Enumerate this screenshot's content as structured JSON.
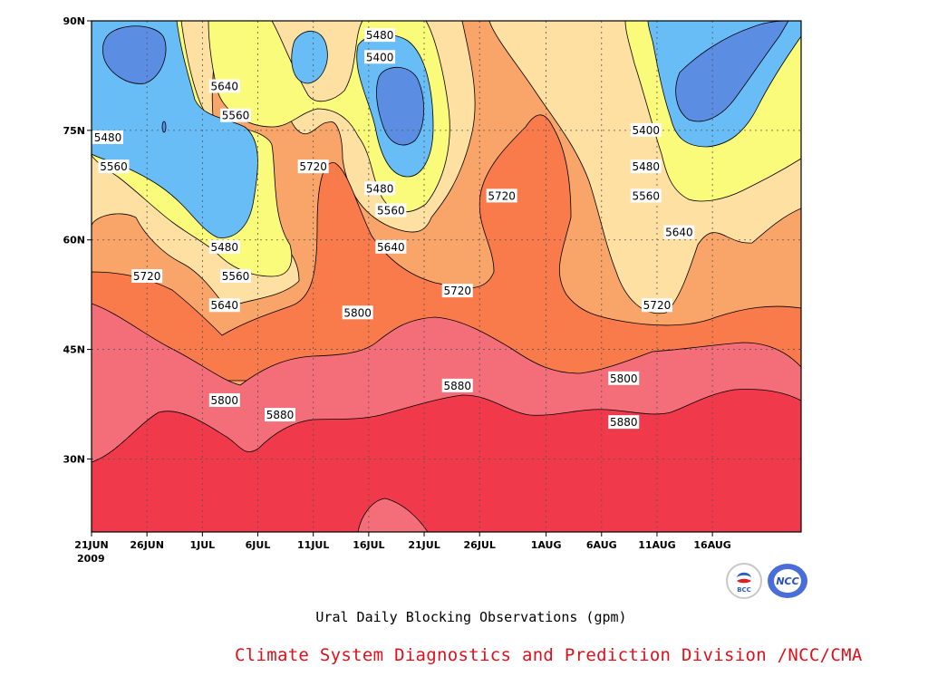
{
  "chart_data": {
    "type": "heatmap",
    "subtype": "filled contour (time-latitude Hovmoller)",
    "title": "Ural Daily Blocking Observations (gpm)",
    "xlabel": "",
    "ylabel": "",
    "x_ticks": [
      "21JUN",
      "26JUN",
      "1JUL",
      "6JUL",
      "11JUL",
      "16JUL",
      "21JUL",
      "26JUL",
      "1AUG",
      "6AUG",
      "11AUG",
      "16AUG"
    ],
    "x_tick_year": "2009",
    "y_ticks": [
      "90N",
      "75N",
      "60N",
      "45N",
      "30N"
    ],
    "y_range_deg": [
      20,
      90
    ],
    "contour_levels": [
      5400,
      5480,
      5560,
      5640,
      5720,
      5800,
      5880
    ],
    "fill_colors": {
      "below_5400": "#5b8ee2",
      "5400_5480": "#69bdf7",
      "5480_5560": "#fafa7b",
      "5560_5640": "#fde0a2",
      "5640_5720": "#f9a56a",
      "5720_5800": "#f97a4a",
      "5800_5880": "#f46e79",
      "above_5880": "#f03a4c"
    },
    "contour_labels": [
      {
        "value": "5480",
        "lat": 88,
        "date": "17JUL"
      },
      {
        "value": "5400",
        "lat": 85,
        "date": "17JUL"
      },
      {
        "value": "5640",
        "lat": 81,
        "date": "3JUL"
      },
      {
        "value": "5560",
        "lat": 77,
        "date": "4JUL"
      },
      {
        "value": "5480",
        "lat": 74,
        "date": "21JUN"
      },
      {
        "value": "5560",
        "lat": 70,
        "date": "23JUN"
      },
      {
        "value": "5720",
        "lat": 70,
        "date": "11JUL"
      },
      {
        "value": "5480",
        "lat": 67,
        "date": "17JUL"
      },
      {
        "value": "5720",
        "lat": 66,
        "date": "28JUL"
      },
      {
        "value": "5560",
        "lat": 64,
        "date": "18JUL"
      },
      {
        "value": "5480",
        "lat": 59,
        "date": "3JUL"
      },
      {
        "value": "5640",
        "lat": 59,
        "date": "18JUL"
      },
      {
        "value": "5400",
        "lat": 75,
        "date": "10AUG"
      },
      {
        "value": "5480",
        "lat": 70,
        "date": "10AUG"
      },
      {
        "value": "5560",
        "lat": 66,
        "date": "10AUG"
      },
      {
        "value": "5640",
        "lat": 61,
        "date": "13AUG"
      },
      {
        "value": "5720",
        "lat": 55,
        "date": "26JUN"
      },
      {
        "value": "5560",
        "lat": 55,
        "date": "4JUL"
      },
      {
        "value": "5720",
        "lat": 53,
        "date": "24JUL"
      },
      {
        "value": "5640",
        "lat": 51,
        "date": "3JUL"
      },
      {
        "value": "5720",
        "lat": 51,
        "date": "11AUG"
      },
      {
        "value": "5800",
        "lat": 50,
        "date": "15JUL"
      },
      {
        "value": "5800",
        "lat": 41,
        "date": "8AUG"
      },
      {
        "value": "5880",
        "lat": 40,
        "date": "24JUL"
      },
      {
        "value": "5800",
        "lat": 38,
        "date": "3JUL"
      },
      {
        "value": "5880",
        "lat": 36,
        "date": "8JUL"
      },
      {
        "value": "5880",
        "lat": 35,
        "date": "8AUG"
      }
    ]
  },
  "caption": "Ural Daily Blocking Observations (gpm)",
  "credit": "Climate System Diagnostics and Prediction Division /NCC/CMA",
  "logos": [
    "BCC",
    "NCC"
  ]
}
